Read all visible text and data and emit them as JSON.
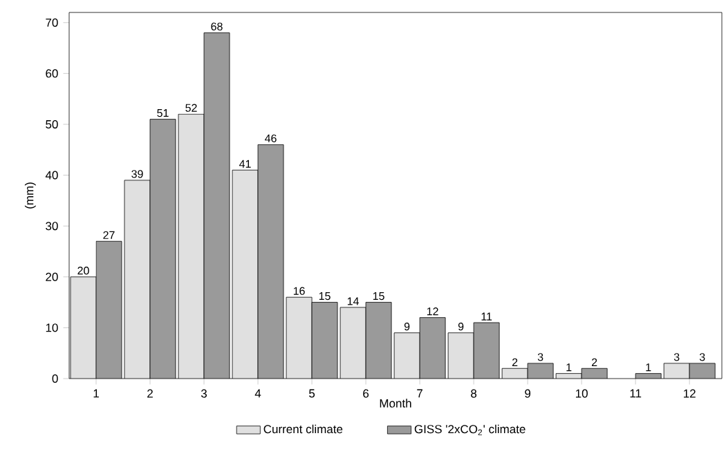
{
  "chart_data": {
    "type": "bar",
    "xlabel": "Month",
    "ylabel": "(mm)",
    "categories": [
      "1",
      "2",
      "3",
      "4",
      "5",
      "6",
      "7",
      "8",
      "9",
      "10",
      "11",
      "12"
    ],
    "series": [
      {
        "name": "Current climate",
        "color": "#e0e0e0",
        "values": [
          20,
          39,
          52,
          41,
          16,
          14,
          9,
          9,
          2,
          1,
          null,
          3
        ]
      },
      {
        "name": "GISS '2xCO$_{2}$' climate",
        "color": "#9a9a9a",
        "values": [
          27,
          51,
          68,
          46,
          15,
          15,
          12,
          11,
          3,
          2,
          1,
          3
        ]
      }
    ],
    "ylim": [
      0,
      72
    ],
    "yticks": [
      0,
      10,
      20,
      30,
      40,
      50,
      60,
      70
    ],
    "data_labels": true,
    "legend": "bottom"
  }
}
